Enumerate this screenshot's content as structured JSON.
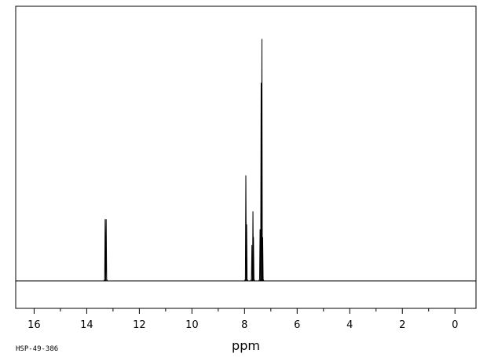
{
  "chart_data": {
    "type": "line",
    "title": "",
    "xlabel": "ppm",
    "ylabel": "",
    "xlim": [
      16.7,
      -0.8
    ],
    "x_reversed": true,
    "xticks": [
      16,
      14,
      12,
      10,
      8,
      6,
      4,
      2,
      0
    ],
    "minor_tick_step": 1,
    "grid": false,
    "legend": "none",
    "peaks": [
      {
        "ppm": 13.3,
        "intensity": 0.24
      },
      {
        "ppm": 13.26,
        "intensity": 0.24
      },
      {
        "ppm": 7.95,
        "intensity": 0.41
      },
      {
        "ppm": 7.92,
        "intensity": 0.22
      },
      {
        "ppm": 7.72,
        "intensity": 0.14
      },
      {
        "ppm": 7.68,
        "intensity": 0.27
      },
      {
        "ppm": 7.66,
        "intensity": 0.17
      },
      {
        "ppm": 7.41,
        "intensity": 0.2
      },
      {
        "ppm": 7.37,
        "intensity": 0.77
      },
      {
        "ppm": 7.34,
        "intensity": 0.94
      },
      {
        "ppm": 7.31,
        "intensity": 0.17
      }
    ],
    "footer_code": "HSP-49-386",
    "color": "#000000"
  }
}
